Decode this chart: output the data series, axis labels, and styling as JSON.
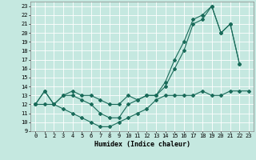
{
  "xlabel": "Humidex (Indice chaleur)",
  "xlim": [
    -0.5,
    23.5
  ],
  "ylim": [
    9,
    23.5
  ],
  "xticks": [
    0,
    1,
    2,
    3,
    4,
    5,
    6,
    7,
    8,
    9,
    10,
    11,
    12,
    13,
    14,
    15,
    16,
    17,
    18,
    19,
    20,
    21,
    22,
    23
  ],
  "yticks": [
    9,
    10,
    11,
    12,
    13,
    14,
    15,
    16,
    17,
    18,
    19,
    20,
    21,
    22,
    23
  ],
  "bg_color": "#c5e8e0",
  "line_color": "#1a6b5a",
  "grid_color": "#ffffff",
  "line1_x": [
    0,
    1,
    2,
    3,
    4,
    5,
    6,
    7,
    8,
    9,
    10,
    11,
    12,
    13,
    14,
    15,
    16,
    17,
    18,
    19,
    20,
    21,
    22
  ],
  "line1_y": [
    12,
    13.5,
    12,
    13,
    13,
    12.5,
    12,
    11,
    10.5,
    10.5,
    12,
    12.5,
    13,
    13,
    14,
    16,
    18,
    21,
    21.5,
    23,
    20,
    21,
    16.5
  ],
  "line2_x": [
    0,
    1,
    2,
    3,
    4,
    5,
    6,
    7,
    8,
    9,
    10,
    11,
    12,
    13,
    14,
    15,
    16,
    17,
    18,
    19,
    20,
    21,
    22
  ],
  "line2_y": [
    12,
    13.5,
    12,
    13,
    13.5,
    13,
    13,
    12.5,
    12,
    12,
    13,
    12.5,
    13,
    13,
    14.5,
    17,
    19,
    21.5,
    22,
    23,
    20,
    21,
    16.5
  ],
  "line3_x": [
    0,
    1,
    2,
    3,
    4,
    5,
    6,
    7,
    8,
    9,
    10,
    11,
    12,
    13,
    14,
    15,
    16,
    17,
    18,
    19,
    20,
    21,
    22,
    23
  ],
  "line3_y": [
    12,
    12,
    12,
    11.5,
    11,
    10.5,
    10,
    9.5,
    9.5,
    10,
    10.5,
    11,
    11.5,
    12.5,
    13,
    13,
    13,
    13,
    13.5,
    13,
    13,
    13.5,
    13.5,
    13.5
  ]
}
